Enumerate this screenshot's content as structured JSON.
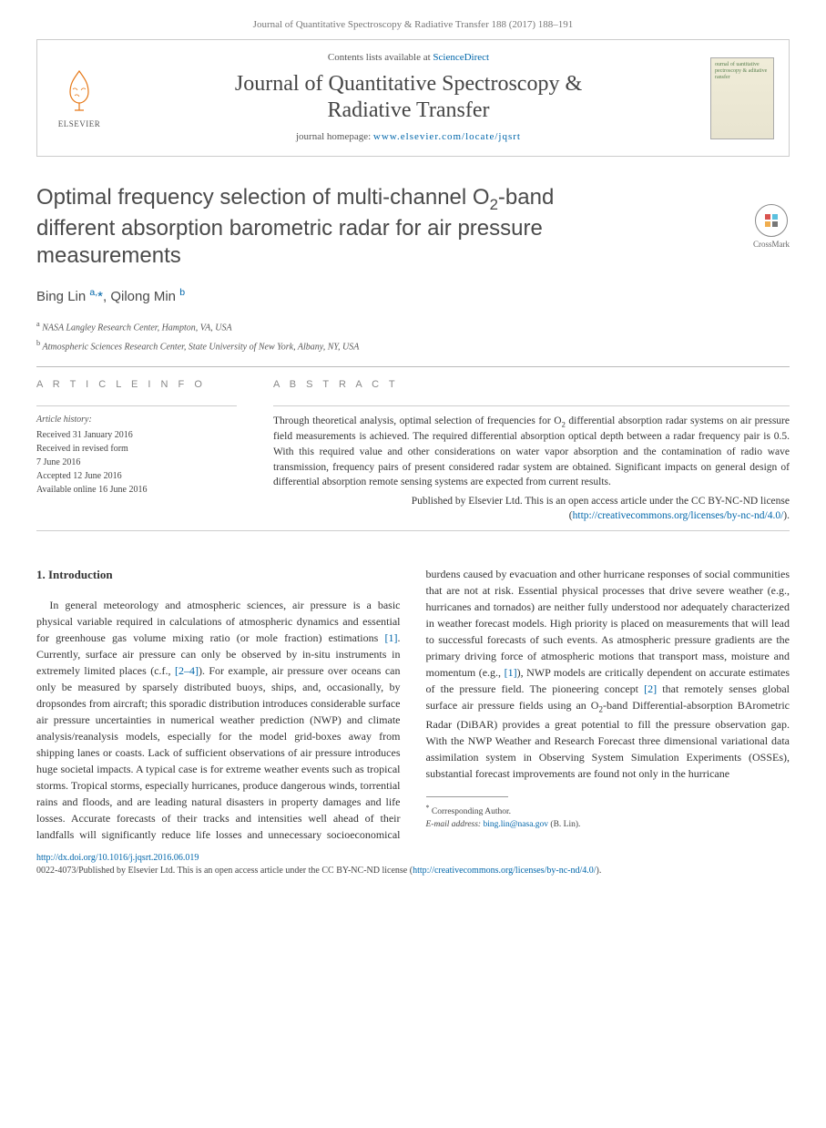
{
  "colors": {
    "link": "#0066aa",
    "text": "#333333",
    "muted": "#777777",
    "heading": "#4a4a4a",
    "rule": "#bbbbbb"
  },
  "typography": {
    "body_font": "Georgia, 'Times New Roman', serif",
    "sans_font": "'Helvetica Neue', Arial, sans-serif",
    "title_size_pt": 24,
    "journal_size_pt": 24,
    "body_size_pt": 12,
    "abstract_size_pt": 11.5,
    "footnote_size_pt": 9.5
  },
  "top_citation": "Journal of Quantitative Spectroscopy & Radiative Transfer 188 (2017) 188–191",
  "header": {
    "elsevier_label": "ELSEVIER",
    "contents_prefix": "Contents lists available at ",
    "contents_link_text": "ScienceDirect",
    "journal_name_line1": "Journal of Quantitative Spectroscopy &",
    "journal_name_line2": "Radiative Transfer",
    "homepage_prefix": "journal homepage: ",
    "homepage_link_text": "www.elsevier.com/locate/jqsrt",
    "cover_text": "ournal of uantitative pectroscopy & aditative ransfer"
  },
  "crossmark_label": "CrossMark",
  "title_html": "Optimal frequency selection of multi-channel O<sub>2</sub>-band different absorption barometric radar for air pressure measurements",
  "authors_html": "Bing Lin <sup>a,</sup><span class=\"star\">*</span>, Qilong Min <sup>b</sup>",
  "affiliations": [
    "a NASA Langley Research Center, Hampton, VA, USA",
    "b Atmospheric Sciences Research Center, State University of New York, Albany, NY, USA"
  ],
  "info": {
    "heading": "A R T I C L E  I N F O",
    "history_label": "Article history:",
    "history": [
      "Received 31 January 2016",
      "Received in revised form",
      "7 June 2016",
      "Accepted 12 June 2016",
      "Available online 16 June 2016"
    ]
  },
  "abstract": {
    "heading": "A B S T R A C T",
    "text_html": "Through theoretical analysis, optimal selection of frequencies for O<sub>2</sub> differential absorption radar systems on air pressure field measurements is achieved. The required differential absorption optical depth between a radar frequency pair is 0.5. With this required value and other considerations on water vapor absorption and the contamination of radio wave transmission, frequency pairs of present considered radar system are obtained. Significant impacts on general design of differential absorption remote sensing systems are expected from current results.",
    "publisher_line": "Published by Elsevier Ltd. This is an open access article under the CC BY-NC-ND license",
    "license_link_text": "http://creativecommons.org/licenses/by-nc-nd/4.0/"
  },
  "body": {
    "section1_heading": "1.  Introduction",
    "para1_html": "In general meteorology and atmospheric sciences, air pressure is a basic physical variable required in calculations of atmospheric dynamics and essential for greenhouse gas volume mixing ratio (or mole fraction) estimations <a class=\"ref\" href=\"#\">[1]</a>. Currently, surface air pressure can only be observed by in-situ instruments in extremely limited places (c.f., <a class=\"ref\" href=\"#\">[2–4]</a>). For example, air pressure over oceans can only be measured by sparsely distributed buoys, ships, and, occasionally, by dropsondes from aircraft; this sporadic distribution introduces considerable surface air pressure uncertainties in numerical weather prediction (NWP) and climate analysis/reanalysis models, especially for the model grid-boxes away from shipping lanes or coasts. Lack of sufficient observations of air pressure introduces huge societal impacts. A typical case is for extreme weather events such as tropical storms. Tropical storms, especially hurricanes, produce dangerous winds, torrential rains and floods, and are leading natural disasters in property damages and life losses. Accurate forecasts of their tracks and intensities well ahead of their landfalls will significantly reduce life losses and unnecessary socioeconomical burdens caused by evacuation and other hurricane responses of social communities that are not at risk. Essential physical processes that drive severe weather (e.g., hurricanes and tornados) are neither fully understood nor adequately characterized in weather forecast models. High priority is placed on measurements that will lead to successful forecasts of such events. As atmospheric pressure gradients are the primary driving force of atmospheric motions that transport mass, moisture and momentum (e.g., <a class=\"ref\" href=\"#\">[1]</a>), NWP models are critically dependent on accurate estimates of the pressure field. The pioneering concept <a class=\"ref\" href=\"#\">[2]</a> that remotely senses global surface air pressure fields using an O<sub>2</sub>-band Differential-absorption BArometric Radar (DiBAR) provides a great potential to fill the pressure observation gap. With the NWP Weather and Research Forecast three dimensional variational data assimilation system in Observing System Simulation Experiments (OSSEs), substantial forecast improvements are found not only in the hurricane"
  },
  "footnotes": {
    "corresponding": "Corresponding Author.",
    "email_label": "E-mail address:",
    "email": "bing.lin@nasa.gov",
    "email_suffix": "(B. Lin)."
  },
  "footer": {
    "doi": "http://dx.doi.org/10.1016/j.jqsrt.2016.06.019",
    "issn_line_prefix": "0022-4073/Published by Elsevier Ltd. This is an open access article under the CC BY-NC-ND license (",
    "issn_link": "http://creativecommons.org/licenses/by-nc-nd/4.0/",
    "issn_line_suffix": ")."
  }
}
